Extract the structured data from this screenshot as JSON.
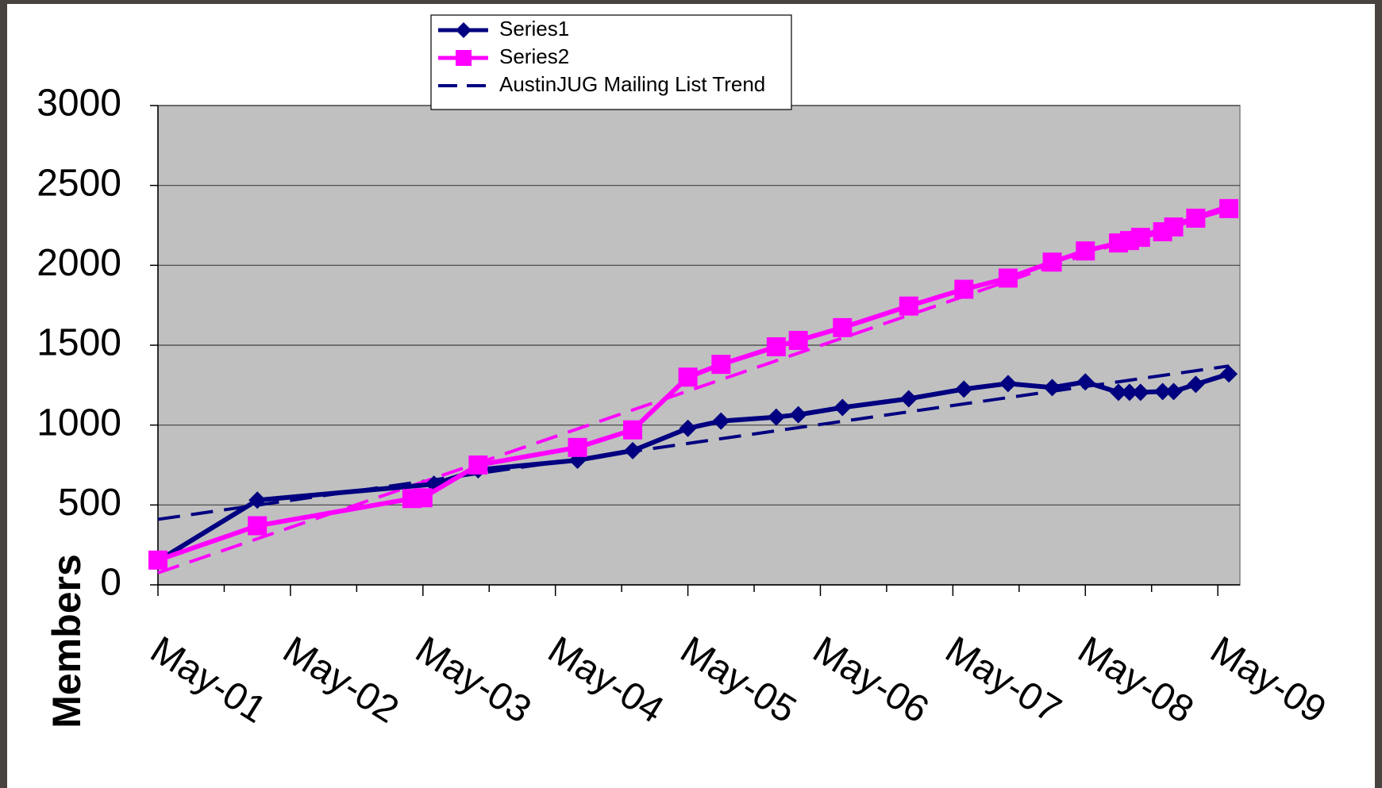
{
  "chart_data": {
    "type": "line",
    "y_label": "Members",
    "xlim": [
      "May-01",
      "Jul-09"
    ],
    "xticks": [
      "May-01",
      "May-02",
      "May-03",
      "May-04",
      "May-05",
      "May-06",
      "May-07",
      "May-08",
      "May-09"
    ],
    "ylim": [
      0,
      3000
    ],
    "yticks": [
      0,
      500,
      1000,
      1500,
      2000,
      2500,
      3000
    ],
    "grid": true,
    "legend": "top",
    "series": [
      {
        "name": "Series1",
        "color": "#000080",
        "marker": "diamond",
        "x": [
          "May-01",
          "Feb-02",
          "Jun-03",
          "Oct-03",
          "Jul-04",
          "Dec-04",
          "May-05",
          "Aug-05",
          "Jan-06",
          "Mar-06",
          "Jul-06",
          "Jan-07",
          "Jun-07",
          "Oct-07",
          "Feb-08",
          "May-08",
          "Aug-08",
          "Sep-08",
          "Oct-08",
          "Dec-08",
          "Jan-09",
          "Mar-09",
          "Jun-09"
        ],
        "values": [
          150,
          530,
          630,
          720,
          780,
          840,
          980,
          1025,
          1050,
          1065,
          1110,
          1165,
          1225,
          1260,
          1235,
          1270,
          1205,
          1205,
          1205,
          1210,
          1210,
          1255,
          1320
        ]
      },
      {
        "name": "Series2",
        "color": "#ff00ff",
        "marker": "square",
        "x": [
          "May-01",
          "Feb-02",
          "Apr-03",
          "May-03",
          "Oct-03",
          "Jul-04",
          "Dec-04",
          "May-05",
          "Aug-05",
          "Jan-06",
          "Mar-06",
          "Jul-06",
          "Jan-07",
          "Jun-07",
          "Oct-07",
          "Feb-08",
          "May-08",
          "Aug-08",
          "Sep-08",
          "Oct-08",
          "Dec-08",
          "Jan-09",
          "Mar-09",
          "Jun-09"
        ],
        "values": [
          155,
          370,
          540,
          545,
          750,
          860,
          970,
          1300,
          1380,
          1490,
          1530,
          1610,
          1745,
          1850,
          1920,
          2020,
          2090,
          2140,
          2155,
          2175,
          2210,
          2240,
          2295,
          2355
        ]
      }
    ],
    "trendlines": [
      {
        "name": "AustinJUG Mailing List Trend",
        "color": "#000080",
        "x": [
          "May-01",
          "Jun-09"
        ],
        "values": [
          410,
          1370
        ]
      },
      {
        "color": "#ff00ff",
        "x": [
          "May-01",
          "Jun-09"
        ],
        "values": [
          75,
          2375
        ]
      }
    ]
  }
}
